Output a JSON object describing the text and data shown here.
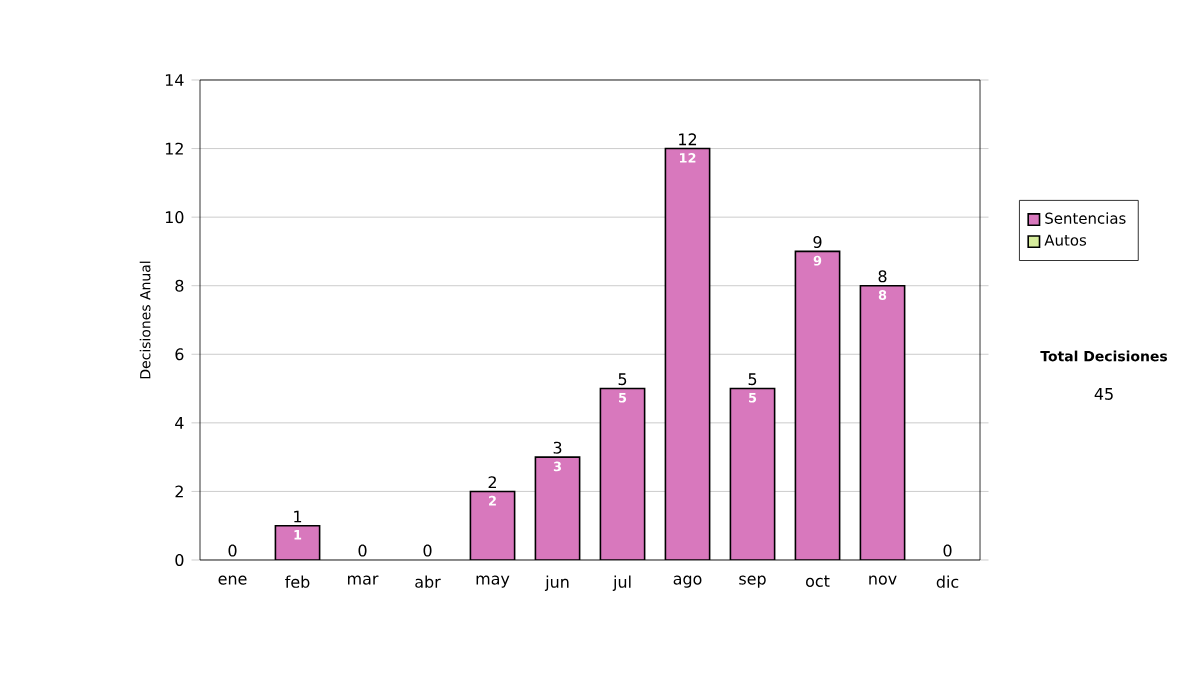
{
  "chart_data": {
    "type": "bar",
    "stacked": true,
    "ylabel": "Decisiones Anual",
    "categories": [
      "ene",
      "feb",
      "mar",
      "abr",
      "may",
      "jun",
      "jul",
      "ago",
      "sep",
      "oct",
      "nov",
      "dic"
    ],
    "series": [
      {
        "name": "Sentencias",
        "color": "#d878bd",
        "values": [
          0,
          1,
          0,
          0,
          2,
          3,
          5,
          12,
          5,
          9,
          8,
          0
        ],
        "value_labels": [
          null,
          "1",
          null,
          null,
          "2",
          "3",
          "5",
          "12",
          "5",
          "9",
          "8",
          null
        ]
      },
      {
        "name": "Autos",
        "color": "#d6ec9c",
        "values": [
          0,
          0,
          0,
          0,
          0,
          0,
          0,
          0,
          0,
          0,
          0,
          0
        ]
      }
    ],
    "totals": [
      "0",
      "1",
      "0",
      "0",
      "2",
      "3",
      "5",
      "12",
      "5",
      "9",
      "8",
      "0"
    ],
    "ylim": [
      0,
      14
    ],
    "yticks": [
      0,
      2,
      4,
      6,
      8,
      10,
      12,
      14
    ],
    "grid": "y",
    "legend": "right",
    "annotations": [
      "Total Decisiones",
      "45"
    ]
  }
}
